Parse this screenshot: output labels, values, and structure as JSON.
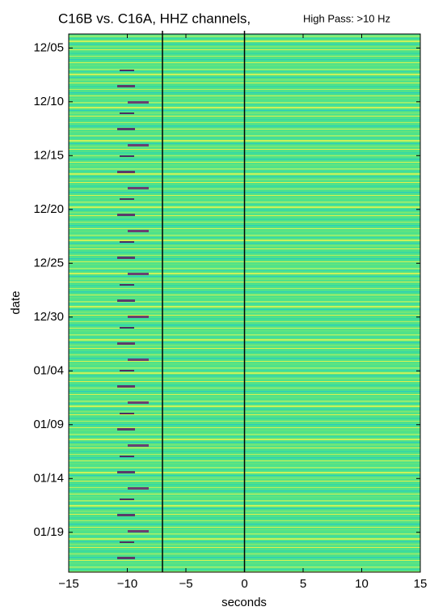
{
  "chart_data": {
    "type": "heatmap",
    "title": "C16B vs. C16A, HHZ channels,",
    "subtitle": "High Pass: >10 Hz",
    "x_label": "seconds",
    "y_label": "date",
    "xlim": [
      -15,
      15
    ],
    "xticks": [
      {
        "value": -15,
        "label": "−15"
      },
      {
        "value": -10,
        "label": "−10"
      },
      {
        "value": -5,
        "label": "−5"
      },
      0,
      5,
      10,
      15
    ],
    "ylim": [
      2.7,
      52.7
    ],
    "y_inverted": true,
    "yticks": [
      {
        "value": 4,
        "label": "12/05"
      },
      {
        "value": 9,
        "label": "12/10"
      },
      {
        "value": 14,
        "label": "12/15"
      },
      {
        "value": 19,
        "label": "12/20"
      },
      {
        "value": 24,
        "label": "12/25"
      },
      {
        "value": 29,
        "label": "12/30"
      },
      {
        "value": 34,
        "label": "01/04"
      },
      {
        "value": 39,
        "label": "01/09"
      },
      {
        "value": 44,
        "label": "01/14"
      },
      {
        "value": 49,
        "label": "01/19"
      }
    ],
    "vlines": [
      -7,
      0
    ]
  }
}
